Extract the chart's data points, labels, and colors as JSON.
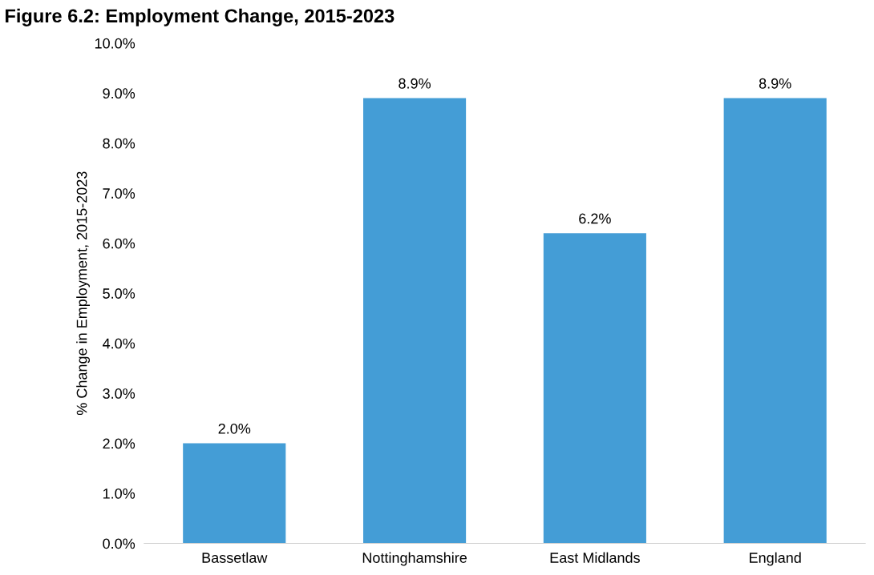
{
  "chart_data": {
    "type": "bar",
    "title": "Figure 6.2: Employment Change, 2015-2023",
    "ylabel": "% Change in Employment, 2015-2023",
    "categories": [
      "Bassetlaw",
      "Nottinghamshire",
      "East Midlands",
      "England"
    ],
    "values": [
      2.0,
      8.9,
      6.2,
      8.9
    ],
    "color": "#449dd6",
    "value_labels": [
      "2.0%",
      "8.9%",
      "6.2%",
      "8.9%"
    ],
    "ylim": [
      0,
      10
    ],
    "yticks": [
      {
        "value": 0,
        "label": "0.0%"
      },
      {
        "value": 1,
        "label": "1.0%"
      },
      {
        "value": 2,
        "label": "2.0%"
      },
      {
        "value": 3,
        "label": "3.0%"
      },
      {
        "value": 4,
        "label": "4.0%"
      },
      {
        "value": 5,
        "label": "5.0%"
      },
      {
        "value": 6,
        "label": "6.0%"
      },
      {
        "value": 7,
        "label": "7.0%"
      },
      {
        "value": 8,
        "label": "8.0%"
      },
      {
        "value": 9,
        "label": "9.0%"
      },
      {
        "value": 10,
        "label": "10.0%"
      }
    ],
    "grid": false,
    "legend": false
  }
}
